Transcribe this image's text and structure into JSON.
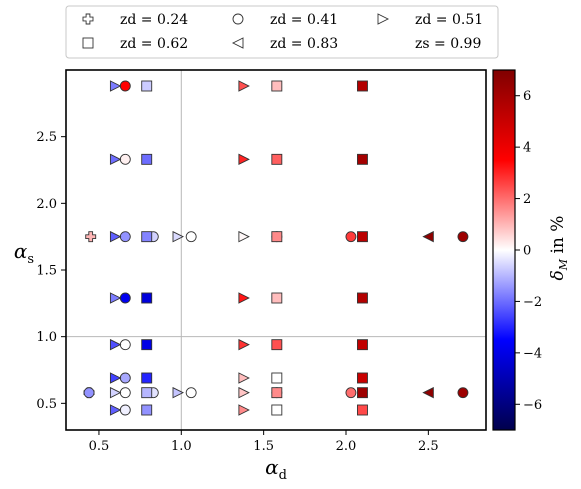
{
  "chart_data": {
    "type": "scatter",
    "title": "",
    "xlabel": "αd",
    "ylabel": "αs",
    "xlim": [
      0.3,
      2.85
    ],
    "ylim": [
      0.3,
      3.0
    ],
    "xticks": [
      0.5,
      1.0,
      1.5,
      2.0,
      2.5
    ],
    "yticks": [
      0.5,
      1.0,
      1.5,
      2.0,
      2.5
    ],
    "reference_lines": {
      "x": 1.0,
      "y": 1.0
    },
    "legend": {
      "placement": "top, outside",
      "entries": [
        {
          "marker": "plus",
          "label": "zd = 0.24"
        },
        {
          "marker": "circle",
          "label": "zd = 0.41"
        },
        {
          "marker": "triangle-right",
          "label": "zd = 0.51"
        },
        {
          "marker": "square",
          "label": "zd = 0.62"
        },
        {
          "marker": "triangle-left",
          "label": "zd = 0.83"
        },
        {
          "marker": "none",
          "label": "zs = 0.99"
        }
      ]
    },
    "colorbar": {
      "label": "δM in %",
      "range": [
        -7,
        7
      ],
      "ticks": [
        6,
        4,
        2,
        0,
        -2,
        -4,
        -6
      ],
      "colormap": "seismic"
    },
    "series": [
      {
        "name": "zd = 0.24",
        "marker": "plus",
        "points": [
          {
            "x": 0.44,
            "y": 0.58,
            "v": -1.5
          },
          {
            "x": 0.45,
            "y": 1.75,
            "v": 1.0
          }
        ]
      },
      {
        "name": "zd = 0.41",
        "marker": "circle",
        "points": [
          {
            "x": 0.66,
            "y": 2.88,
            "v": 3.5
          },
          {
            "x": 0.66,
            "y": 2.33,
            "v": 0.2
          },
          {
            "x": 0.66,
            "y": 1.75,
            "v": -1.5
          },
          {
            "x": 0.66,
            "y": 1.29,
            "v": -3.8
          },
          {
            "x": 0.66,
            "y": 0.94,
            "v": 0.0
          },
          {
            "x": 0.66,
            "y": 0.69,
            "v": -1.2
          },
          {
            "x": 0.66,
            "y": 0.58,
            "v": 0.0
          },
          {
            "x": 0.66,
            "y": 0.45,
            "v": -0.2
          },
          {
            "x": 0.44,
            "y": 0.58,
            "v": -1.5
          },
          {
            "x": 0.83,
            "y": 1.75,
            "v": -0.6
          },
          {
            "x": 0.83,
            "y": 0.58,
            "v": -0.4
          },
          {
            "x": 1.06,
            "y": 1.75,
            "v": 0.0
          },
          {
            "x": 1.06,
            "y": 0.58,
            "v": 0.0
          },
          {
            "x": 1.58,
            "y": 1.75,
            "v": 1.9
          },
          {
            "x": 1.58,
            "y": 0.58,
            "v": 1.5
          },
          {
            "x": 2.03,
            "y": 1.75,
            "v": 2.7
          },
          {
            "x": 2.03,
            "y": 0.58,
            "v": 2.0
          },
          {
            "x": 2.71,
            "y": 1.75,
            "v": 6.2
          },
          {
            "x": 2.71,
            "y": 0.58,
            "v": 6.2
          }
        ]
      },
      {
        "name": "zd = 0.51",
        "marker": "triangle-right",
        "points": [
          {
            "x": 0.6,
            "y": 2.88,
            "v": -1.8
          },
          {
            "x": 0.6,
            "y": 2.33,
            "v": -2.0
          },
          {
            "x": 0.6,
            "y": 1.75,
            "v": -2.2
          },
          {
            "x": 0.6,
            "y": 1.29,
            "v": -1.8
          },
          {
            "x": 0.6,
            "y": 0.94,
            "v": -2.4
          },
          {
            "x": 0.6,
            "y": 0.69,
            "v": -2.6
          },
          {
            "x": 0.6,
            "y": 0.58,
            "v": -0.6
          },
          {
            "x": 0.6,
            "y": 0.45,
            "v": -2.2
          },
          {
            "x": 0.98,
            "y": 1.75,
            "v": -0.5
          },
          {
            "x": 0.98,
            "y": 0.58,
            "v": -0.8
          },
          {
            "x": 1.38,
            "y": 2.88,
            "v": 2.4
          },
          {
            "x": 1.38,
            "y": 2.33,
            "v": 3.0
          },
          {
            "x": 1.38,
            "y": 1.75,
            "v": 0.1
          },
          {
            "x": 1.38,
            "y": 1.29,
            "v": 3.2
          },
          {
            "x": 1.38,
            "y": 0.94,
            "v": 2.8
          },
          {
            "x": 1.38,
            "y": 0.69,
            "v": 0.9
          },
          {
            "x": 1.38,
            "y": 0.58,
            "v": 0.8
          },
          {
            "x": 1.38,
            "y": 0.45,
            "v": 1.6
          }
        ]
      },
      {
        "name": "zd = 0.62",
        "marker": "square",
        "points": [
          {
            "x": 0.79,
            "y": 2.88,
            "v": -0.7
          },
          {
            "x": 0.79,
            "y": 2.33,
            "v": -2.0
          },
          {
            "x": 0.79,
            "y": 1.75,
            "v": -1.7
          },
          {
            "x": 0.79,
            "y": 1.29,
            "v": -4.2
          },
          {
            "x": 0.79,
            "y": 0.94,
            "v": -4.0
          },
          {
            "x": 0.79,
            "y": 0.69,
            "v": -3.0
          },
          {
            "x": 0.79,
            "y": 0.58,
            "v": -1.0
          },
          {
            "x": 0.79,
            "y": 0.45,
            "v": -1.5
          },
          {
            "x": 1.58,
            "y": 2.88,
            "v": 0.9
          },
          {
            "x": 1.58,
            "y": 2.33,
            "v": 2.2
          },
          {
            "x": 1.58,
            "y": 1.75,
            "v": 1.6
          },
          {
            "x": 1.58,
            "y": 1.29,
            "v": 0.9
          },
          {
            "x": 1.58,
            "y": 0.94,
            "v": 2.4
          },
          {
            "x": 1.58,
            "y": 0.69,
            "v": 0.0
          },
          {
            "x": 1.58,
            "y": 0.58,
            "v": 1.6
          },
          {
            "x": 1.58,
            "y": 0.45,
            "v": 0.0
          },
          {
            "x": 2.1,
            "y": 2.88,
            "v": 5.6
          },
          {
            "x": 2.1,
            "y": 2.33,
            "v": 6.0
          },
          {
            "x": 2.1,
            "y": 1.75,
            "v": 5.4
          },
          {
            "x": 2.1,
            "y": 1.29,
            "v": 5.6
          },
          {
            "x": 2.1,
            "y": 0.94,
            "v": 5.2
          },
          {
            "x": 2.1,
            "y": 0.69,
            "v": 5.0
          },
          {
            "x": 2.1,
            "y": 0.58,
            "v": 6.2
          },
          {
            "x": 2.1,
            "y": 0.45,
            "v": 2.5
          }
        ]
      },
      {
        "name": "zd = 0.83",
        "marker": "triangle-left",
        "points": [
          {
            "x": 2.5,
            "y": 1.75,
            "v": 6.6
          },
          {
            "x": 2.5,
            "y": 0.58,
            "v": 6.6
          }
        ]
      }
    ]
  }
}
